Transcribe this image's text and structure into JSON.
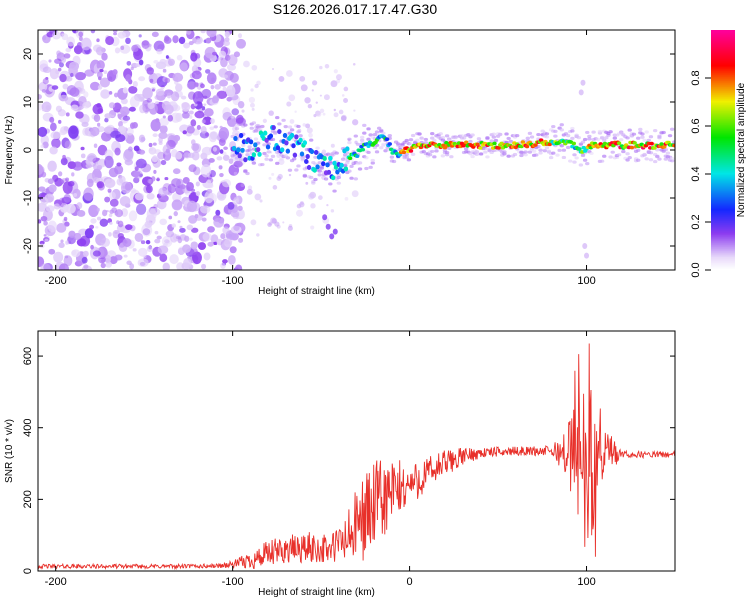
{
  "figure_title": "S126.2026.017.17.47.G30",
  "chart_data": [
    {
      "type": "heatmap",
      "name": "spectrogram",
      "xlabel": "Height of straight line (km)",
      "ylabel": "Frequency (Hz)",
      "xlim": [
        -210,
        150
      ],
      "ylim": [
        -25,
        25
      ],
      "x_ticks": [
        -200,
        -100,
        0,
        100
      ],
      "x_tick_labels": [
        "-200",
        "-100",
        "",
        "100"
      ],
      "y_ticks": [
        -20,
        -10,
        0,
        10,
        20
      ],
      "y_tick_labels": [
        "-20",
        "-10",
        "0",
        "10",
        "20"
      ],
      "ridge": {
        "x": [
          -100,
          -92,
          -85,
          -78,
          -70,
          -62,
          -55,
          -48,
          -42,
          -36,
          -30,
          -25,
          -20,
          -15,
          -10,
          -6,
          -2,
          5,
          20,
          40,
          60,
          75,
          85,
          92,
          98,
          102,
          110,
          125,
          150
        ],
        "y": [
          2,
          0,
          1.5,
          2.5,
          1,
          0,
          -2,
          -3,
          -4,
          -2,
          -1,
          1,
          1.5,
          3,
          0,
          -1,
          0,
          1,
          1,
          1,
          1,
          1.5,
          2,
          1,
          0,
          1,
          1,
          1,
          1
        ]
      },
      "colorbar": {
        "label": "Normalized spectral amplitude",
        "range": [
          0,
          1
        ],
        "ticks": [
          0,
          0.2,
          0.4,
          0.6,
          0.8
        ],
        "tick_labels": [
          "0.0",
          "0.2",
          "0.4",
          "0.6",
          "0.8"
        ]
      }
    },
    {
      "type": "line",
      "name": "snr",
      "xlabel": "Height of straight line (km)",
      "ylabel": "SNR (10 * v/v)",
      "xlim": [
        -210,
        150
      ],
      "ylim": [
        0,
        670
      ],
      "x_ticks": [
        -200,
        -100,
        0,
        100
      ],
      "x_tick_labels": [
        "-200",
        "-100",
        "0",
        "100"
      ],
      "y_ticks": [
        0,
        200,
        400,
        600
      ],
      "y_tick_labels": [
        "0",
        "200",
        "400",
        "600"
      ],
      "color": "#e8302a",
      "envelope": {
        "x": [
          -210,
          -130,
          -110,
          -100,
          -90,
          -80,
          -70,
          -55,
          -45,
          -35,
          -25,
          -15,
          -5,
          0,
          10,
          20,
          30,
          40,
          60,
          80,
          88,
          95,
          100,
          105,
          110,
          120,
          150
        ],
        "base": [
          13,
          13,
          14,
          18,
          30,
          45,
          60,
          65,
          60,
          90,
          160,
          200,
          230,
          240,
          270,
          300,
          320,
          330,
          335,
          335,
          330,
          320,
          300,
          320,
          325,
          325,
          325
        ],
        "amp": [
          6,
          6,
          6,
          10,
          25,
          40,
          40,
          45,
          40,
          80,
          130,
          120,
          80,
          60,
          50,
          40,
          25,
          15,
          12,
          15,
          60,
          200,
          250,
          200,
          80,
          10,
          8
        ]
      }
    }
  ]
}
